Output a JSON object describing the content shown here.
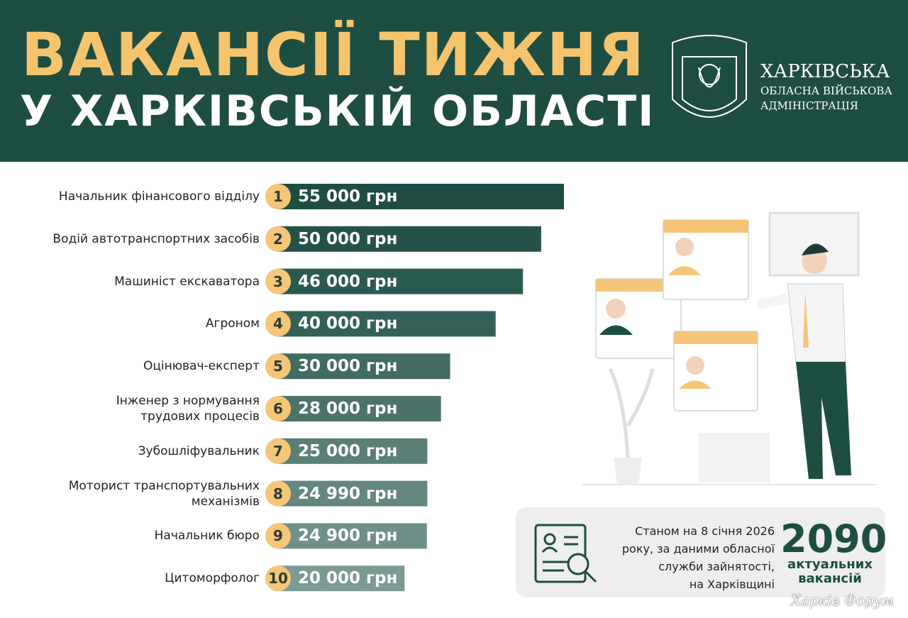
{
  "chart_data": {
    "type": "hbar",
    "title": "ВАКАНСІЇ ТИЖНЯ",
    "subtitle": "У ХАРКІВСЬКІЙ ОБЛАСТІ",
    "categories": [
      "Начальник фінансового відділу",
      "Водій автотранспортних засобів",
      "Машиніст екскаватора",
      "Агроном",
      "Оцінювач-експерт",
      "Інженер з нормування\nтрудових процесів",
      "Зубошліфувальник",
      "Моторист транспортувальних\nмеханізмів",
      "Начальник бюро",
      "Цитоморфолог"
    ],
    "ranks": [
      1,
      2,
      3,
      4,
      5,
      6,
      7,
      8,
      9,
      10
    ],
    "values": [
      55000,
      50000,
      46000,
      40000,
      30000,
      28000,
      25000,
      24990,
      24900,
      20000
    ],
    "value_labels": [
      "55 000 грн",
      "50 000 грн",
      "46 000 грн",
      "40 000 грн",
      "30 000 грн",
      "28 000 грн",
      "25 000 грн",
      "24 990 грн",
      "24 900 грн",
      "20 000 грн"
    ],
    "colors": [
      "#1f4d43",
      "#24524a",
      "#2b5a51",
      "#346157",
      "#426c63",
      "#4c736a",
      "#5a7f76",
      "#64877f",
      "#6f9089",
      "#7c9a94"
    ],
    "rank_color": "#f5c678"
  },
  "logo": {
    "line1": "ХАРКІВСЬКА",
    "line2": "ОБЛАСНА ВІЙСЬКОВА",
    "line3": "АДМІНІСТРАЦІЯ"
  },
  "stat": {
    "text": "Станом на 8 січня 2026\nроку, за даними обласної\nслужби зайнятості,\nна Харківщині",
    "number": 2090,
    "label": "актуальних\nвакансій"
  },
  "watermark": "Харків Форум"
}
